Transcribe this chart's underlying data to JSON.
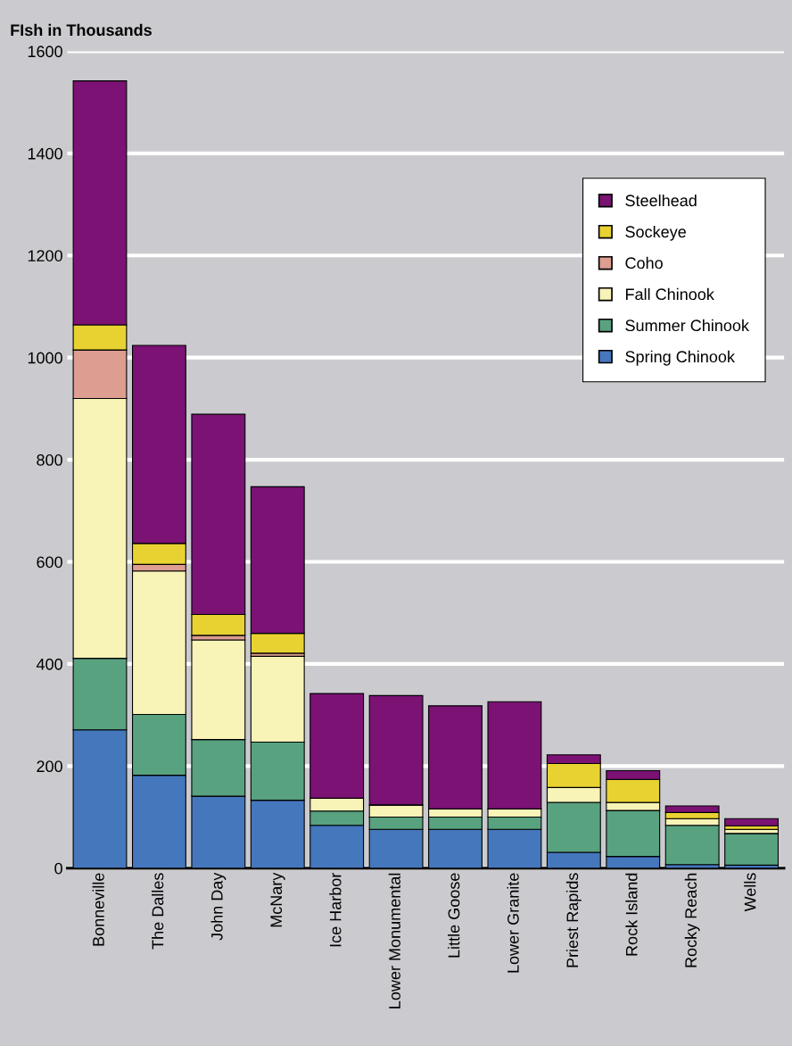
{
  "chart_data": {
    "type": "bar",
    "stacked": true,
    "title": "FIsh in Thousands",
    "categories": [
      "Bonneville",
      "The Dalles",
      "John Day",
      "McNary",
      "Ice Harbor",
      "Lower Monumental",
      "Little Goose",
      "Lower Granite",
      "Priest Rapids",
      "Rock Island",
      "Rocky Reach",
      "Wells"
    ],
    "series": [
      {
        "name": "Spring Chinook",
        "color": "#4577bd",
        "values": [
          271,
          182,
          141,
          133,
          84,
          76,
          76,
          76,
          31,
          23,
          7,
          6
        ]
      },
      {
        "name": "Summer Chinook",
        "color": "#58a280",
        "values": [
          140,
          119,
          111,
          114,
          28,
          24,
          24,
          24,
          98,
          90,
          77,
          62
        ]
      },
      {
        "name": "Fall Chinook",
        "color": "#f8f3b6",
        "values": [
          509,
          281,
          195,
          168,
          25,
          24,
          16,
          16,
          29,
          16,
          13,
          8
        ]
      },
      {
        "name": "Coho",
        "color": "#dd9d91",
        "values": [
          95,
          13,
          9,
          6,
          0,
          0,
          0,
          0,
          null,
          0,
          0,
          0
        ]
      },
      {
        "name": "Sockeye",
        "color": "#e8d232",
        "values": [
          49,
          41,
          41,
          39,
          0,
          0,
          0,
          0,
          47,
          45,
          12,
          7
        ]
      },
      {
        "name": "Steelhead",
        "color": "#7b1274",
        "values": [
          478,
          388,
          392,
          287,
          205,
          214,
          202,
          210,
          17,
          17,
          13,
          14
        ]
      }
    ],
    "ylim": [
      0,
      1600
    ],
    "yticks": [
      0,
      200,
      400,
      600,
      800,
      1000,
      1200,
      1400,
      1600
    ],
    "grid": "y",
    "legend": "right"
  }
}
